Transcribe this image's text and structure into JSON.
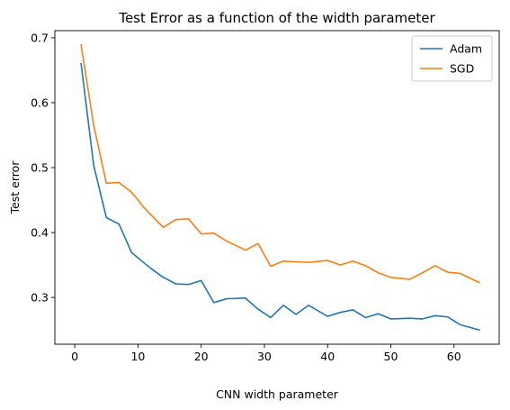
{
  "chart_data": {
    "type": "line",
    "title": "Test Error as a function of the width parameter",
    "xlabel": "CNN width parameter",
    "ylabel": "Test error",
    "xlim": [
      -3.15,
      67.15
    ],
    "ylim": [
      0.228,
      0.711
    ],
    "xticks": [
      0,
      10,
      20,
      30,
      40,
      50,
      60
    ],
    "yticks": [
      0.3,
      0.4,
      0.5,
      0.6,
      0.7
    ],
    "legend_position": "top-right",
    "grid": false,
    "x": [
      1,
      3,
      5,
      7,
      9,
      11,
      12,
      14,
      16,
      18,
      20,
      22,
      24,
      27,
      29,
      31,
      33,
      35,
      37,
      40,
      42,
      44,
      46,
      48,
      50,
      53,
      55,
      57,
      59,
      61,
      64
    ],
    "series": [
      {
        "name": "Adam",
        "color": "#1f77b4",
        "values": [
          0.66,
          0.503,
          0.423,
          0.413,
          0.369,
          0.353,
          0.345,
          0.331,
          0.321,
          0.32,
          0.326,
          0.292,
          0.298,
          0.299,
          0.282,
          0.269,
          0.288,
          0.274,
          0.288,
          0.271,
          0.277,
          0.281,
          0.269,
          0.275,
          0.267,
          0.268,
          0.267,
          0.272,
          0.27,
          0.258,
          0.25
        ]
      },
      {
        "name": "SGD",
        "color": "#ff7f0e",
        "values": [
          0.689,
          0.565,
          0.476,
          0.477,
          0.462,
          0.438,
          0.428,
          0.408,
          0.42,
          0.421,
          0.398,
          0.399,
          0.387,
          0.373,
          0.383,
          0.348,
          0.356,
          0.355,
          0.354,
          0.357,
          0.35,
          0.356,
          0.349,
          0.338,
          0.331,
          0.328,
          0.338,
          0.349,
          0.339,
          0.337,
          0.323
        ]
      }
    ]
  }
}
